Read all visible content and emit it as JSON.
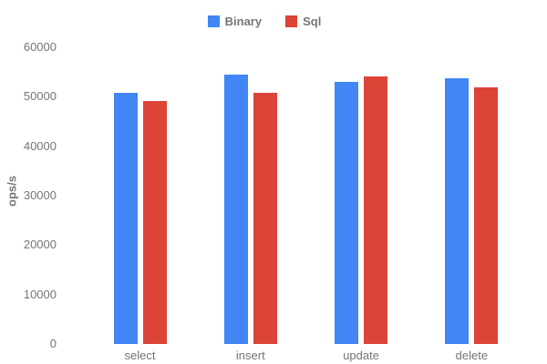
{
  "chart_data": {
    "type": "bar",
    "title": "",
    "xlabel": "",
    "ylabel": "ops/s",
    "categories": [
      "select",
      "insert",
      "update",
      "delete"
    ],
    "series": [
      {
        "name": "Binary",
        "color": "#4285f4",
        "values": [
          50800,
          54500,
          53000,
          53700
        ]
      },
      {
        "name": "Sql",
        "color": "#db4437",
        "values": [
          49100,
          50800,
          54100,
          51900
        ]
      }
    ],
    "ylim": [
      0,
      60000
    ],
    "yticks": [
      0,
      10000,
      20000,
      30000,
      40000,
      50000,
      60000
    ],
    "grid": false,
    "legend_position": "top",
    "background_color": "#ffffff",
    "text_color": "#757575"
  }
}
